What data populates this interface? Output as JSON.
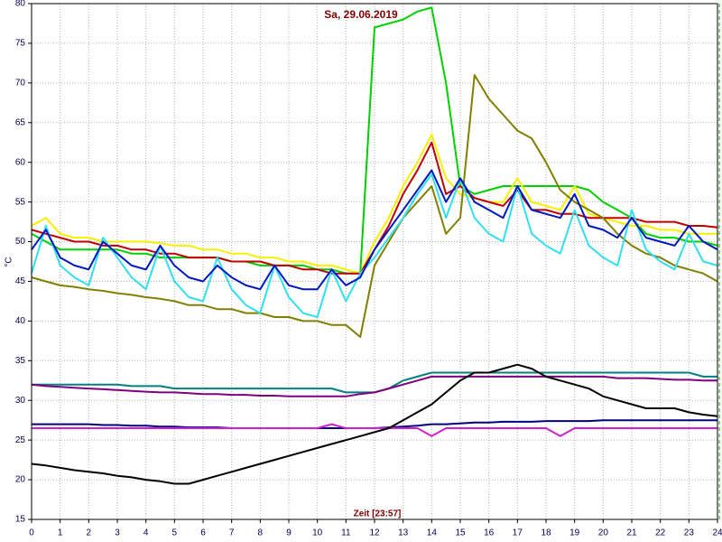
{
  "chart_data": {
    "type": "line",
    "title": "Sa, 29.06.2019",
    "x_label": "Zeit [23:57]",
    "y_label": "°C",
    "x": [
      0,
      0.5,
      1,
      1.5,
      2,
      2.5,
      3,
      3.5,
      4,
      4.5,
      5,
      5.5,
      6,
      6.5,
      7,
      7.5,
      8,
      8.5,
      9,
      9.5,
      10,
      10.5,
      11,
      11.5,
      12,
      12.5,
      13,
      13.5,
      14,
      14.5,
      15,
      15.5,
      16,
      16.5,
      17,
      17.5,
      18,
      18.5,
      19,
      19.5,
      20,
      20.5,
      21,
      21.5,
      22,
      22.5,
      23,
      23.5,
      24
    ],
    "xlim": [
      0,
      24
    ],
    "xticks": [
      0,
      1,
      2,
      3,
      4,
      5,
      6,
      7,
      8,
      9,
      10,
      11,
      12,
      13,
      14,
      15,
      16,
      17,
      18,
      19,
      20,
      21,
      22,
      23,
      24
    ],
    "ylim": [
      15,
      80
    ],
    "yticks": [
      15,
      20,
      25,
      30,
      35,
      40,
      45,
      50,
      55,
      60,
      65,
      70,
      75,
      80
    ],
    "grid": true,
    "series": [
      {
        "color": "#00d000",
        "values": [
          51,
          50,
          49,
          49,
          49,
          49,
          49,
          48.5,
          48.5,
          48,
          48,
          48,
          48,
          48,
          47.5,
          47.5,
          47,
          47,
          47,
          47,
          46.5,
          46.5,
          46,
          46,
          77,
          77.5,
          78,
          79,
          79.5,
          70,
          57,
          56,
          56.5,
          57,
          57,
          57,
          57,
          57,
          57,
          56.5,
          55,
          54,
          53,
          51,
          50.5,
          50.5,
          50,
          50,
          49.5
        ]
      },
      {
        "color": "#f8f000",
        "values": [
          52,
          53,
          51,
          50.5,
          50.5,
          50,
          50,
          50,
          50,
          49.8,
          49.5,
          49.5,
          49,
          49,
          48.5,
          48.5,
          48,
          48,
          47.5,
          47.5,
          47,
          47,
          46.5,
          46,
          50,
          53,
          57,
          60,
          63.5,
          58,
          56,
          55.5,
          55,
          55,
          58,
          55,
          54.5,
          54,
          57,
          53.5,
          53,
          52.5,
          52,
          52,
          51.5,
          51.5,
          51,
          51,
          51
        ]
      },
      {
        "color": "#c00000",
        "values": [
          51.5,
          51,
          50.5,
          50,
          50,
          49.5,
          49.5,
          49,
          49,
          48.5,
          48.5,
          48,
          48,
          48,
          47.5,
          47.5,
          47.5,
          47,
          47,
          46.5,
          46.5,
          46,
          46,
          46,
          49,
          52,
          56,
          59,
          62.5,
          56,
          57,
          55.5,
          55,
          54.5,
          56.5,
          54,
          54,
          53.5,
          53.5,
          53,
          53,
          53,
          53,
          52.5,
          52.5,
          52.5,
          52,
          52,
          51.8
        ]
      },
      {
        "color": "#808000",
        "values": [
          45.5,
          45,
          44.5,
          44.3,
          44,
          43.8,
          43.5,
          43.3,
          43,
          42.8,
          42.5,
          42,
          42,
          41.5,
          41.5,
          41,
          41,
          40.5,
          40.5,
          40,
          40,
          39.5,
          39.5,
          38,
          47,
          50,
          53,
          55,
          57,
          51,
          53,
          71,
          68,
          66,
          64,
          63,
          60,
          56.5,
          55,
          54,
          53,
          51,
          49.5,
          48.5,
          48,
          47,
          46.5,
          46,
          45
        ]
      },
      {
        "color": "#30e0f0",
        "values": [
          46,
          52,
          47,
          45.5,
          44.5,
          50.5,
          48,
          45.5,
          44,
          49.5,
          45,
          43,
          42.5,
          48,
          44,
          42,
          41,
          47,
          43,
          41,
          40.5,
          46.5,
          42.5,
          46,
          48,
          50.5,
          53,
          56,
          58.5,
          53,
          58,
          53,
          51,
          50,
          57,
          51,
          49.5,
          48.5,
          54,
          49.5,
          48,
          47,
          54,
          49,
          47.5,
          46.5,
          51,
          47.5,
          47
        ]
      },
      {
        "color": "#0018c0",
        "values": [
          49,
          51.5,
          48,
          47,
          46.5,
          50,
          48.5,
          47,
          46.5,
          49.5,
          47,
          45.5,
          45,
          47,
          45.5,
          44.5,
          44,
          47,
          44.5,
          44,
          44,
          46.5,
          44.5,
          45.5,
          49,
          51.5,
          54,
          56.5,
          59,
          55,
          58,
          55,
          54,
          53,
          57,
          54,
          53.5,
          53,
          56,
          52,
          51.5,
          50.5,
          53,
          50.5,
          50,
          49.5,
          52,
          50,
          49
        ]
      },
      {
        "color": "#008080",
        "values": [
          32,
          32,
          32,
          32,
          32,
          32,
          32,
          31.8,
          31.8,
          31.8,
          31.5,
          31.5,
          31.5,
          31.5,
          31.5,
          31.5,
          31.5,
          31.5,
          31.5,
          31.5,
          31.5,
          31.5,
          31,
          31,
          31,
          31.5,
          32.5,
          33,
          33.5,
          33.5,
          33.5,
          33.5,
          33.5,
          33.5,
          33.5,
          33.5,
          33.5,
          33.5,
          33.5,
          33.5,
          33.5,
          33.5,
          33.5,
          33.5,
          33.5,
          33.5,
          33.5,
          33,
          33
        ]
      },
      {
        "color": "#800080",
        "values": [
          32,
          31.8,
          31.7,
          31.6,
          31.5,
          31.4,
          31.3,
          31.2,
          31.1,
          31,
          31,
          30.9,
          30.8,
          30.8,
          30.7,
          30.7,
          30.6,
          30.6,
          30.5,
          30.5,
          30.5,
          30.5,
          30.5,
          30.8,
          31,
          31.5,
          32,
          32.5,
          33,
          33,
          33,
          33,
          33,
          33,
          33,
          33,
          33,
          33,
          33,
          33,
          33,
          32.8,
          32.8,
          32.8,
          32.7,
          32.6,
          32.6,
          32.5,
          32.5
        ]
      },
      {
        "color": "#000080",
        "values": [
          27,
          27,
          27,
          27,
          27,
          26.9,
          26.9,
          26.8,
          26.8,
          26.7,
          26.7,
          26.6,
          26.6,
          26.6,
          26.5,
          26.5,
          26.5,
          26.5,
          26.5,
          26.5,
          26.5,
          26.5,
          26.5,
          26.5,
          26.5,
          26.6,
          26.7,
          26.8,
          27,
          27,
          27.1,
          27.2,
          27.2,
          27.3,
          27.3,
          27.3,
          27.4,
          27.4,
          27.4,
          27.4,
          27.5,
          27.5,
          27.5,
          27.5,
          27.5,
          27.5,
          27.5,
          27.5,
          27.5
        ]
      },
      {
        "color": "#d020d0",
        "values": [
          26.5,
          26.5,
          26.5,
          26.5,
          26.5,
          26.5,
          26.5,
          26.5,
          26.5,
          26.5,
          26.5,
          26.5,
          26.5,
          26.5,
          26.5,
          26.5,
          26.5,
          26.5,
          26.5,
          26.5,
          26.5,
          27,
          26.5,
          26.5,
          26.5,
          26.5,
          26.5,
          26.5,
          25.5,
          26.5,
          26.5,
          26.5,
          26.5,
          26.5,
          26.5,
          26.5,
          26.5,
          25.5,
          26.5,
          26.5,
          26.5,
          26.5,
          26.5,
          26.5,
          26.5,
          26.5,
          26.5,
          26.5,
          26.5
        ]
      },
      {
        "color": "#000000",
        "values": [
          22,
          21.8,
          21.5,
          21.2,
          21,
          20.8,
          20.5,
          20.3,
          20,
          19.8,
          19.5,
          19.5,
          20,
          20.5,
          21,
          21.5,
          22,
          22.5,
          23,
          23.5,
          24,
          24.5,
          25,
          25.5,
          26,
          26.5,
          27.5,
          28.5,
          29.5,
          31,
          32.5,
          33.5,
          33.5,
          34,
          34.5,
          34,
          33,
          32.5,
          32,
          31.5,
          30.5,
          30,
          29.5,
          29,
          29,
          29,
          28.5,
          28.2,
          28
        ]
      }
    ]
  }
}
